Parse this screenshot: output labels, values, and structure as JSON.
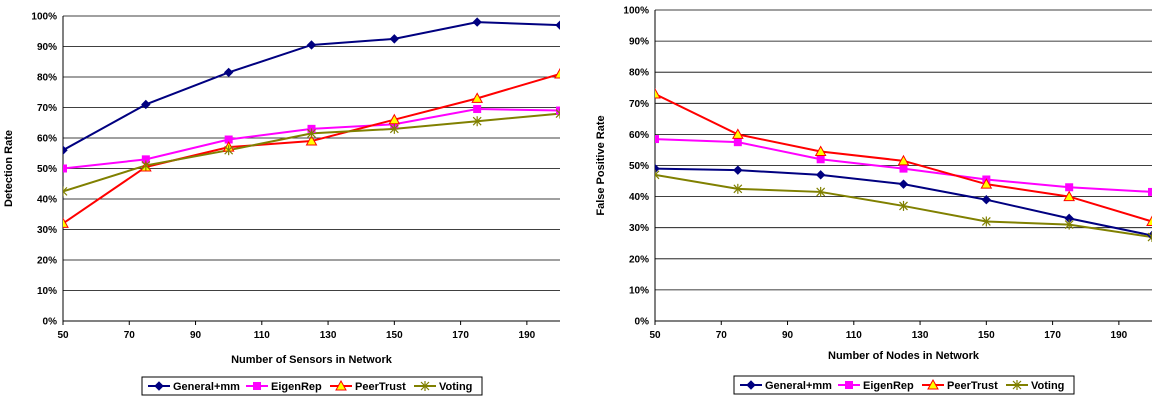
{
  "chart_data": [
    {
      "type": "line",
      "title": "",
      "xlabel": "Number of Sensors in Network",
      "ylabel": "Detection Rate",
      "xlim": [
        50,
        200
      ],
      "ylim": [
        0,
        100
      ],
      "x_ticks": [
        "50",
        "70",
        "90",
        "110",
        "130",
        "150",
        "170",
        "190"
      ],
      "y_ticks": [
        "0%",
        "10%",
        "20%",
        "30%",
        "40%",
        "50%",
        "60%",
        "70%",
        "80%",
        "90%",
        "100%"
      ],
      "grid": "horizontal",
      "legend_position": "bottom",
      "x": [
        50,
        75,
        100,
        125,
        150,
        175,
        200
      ],
      "series": [
        {
          "name": "General+mm",
          "color": "#000080",
          "marker": "diamond",
          "values": [
            56,
            71,
            81.5,
            90.5,
            92.5,
            98,
            97
          ]
        },
        {
          "name": "EigenRep",
          "color": "#FF00FF",
          "marker": "square",
          "values": [
            50,
            53,
            59.5,
            63,
            64.5,
            69.5,
            69
          ]
        },
        {
          "name": "PeerTrust",
          "color": "#FF0000",
          "marker": "triangle",
          "values": [
            32,
            50.5,
            57,
            59,
            66,
            73,
            81
          ]
        },
        {
          "name": "Voting",
          "color": "#808000",
          "marker": "star",
          "values": [
            42.5,
            51,
            56,
            61.5,
            63,
            65.5,
            68
          ]
        }
      ]
    },
    {
      "type": "line",
      "title": "",
      "xlabel": "Number of Nodes in Network",
      "ylabel": "False Positive Rate",
      "xlim": [
        50,
        200
      ],
      "ylim": [
        0,
        100
      ],
      "x_ticks": [
        "50",
        "70",
        "90",
        "110",
        "130",
        "150",
        "170",
        "190"
      ],
      "y_ticks": [
        "0%",
        "10%",
        "20%",
        "30%",
        "40%",
        "50%",
        "60%",
        "70%",
        "80%",
        "90%",
        "100%"
      ],
      "grid": "horizontal",
      "legend_position": "bottom",
      "x": [
        50,
        75,
        100,
        125,
        150,
        175,
        200
      ],
      "series": [
        {
          "name": "General+mm",
          "color": "#000080",
          "marker": "diamond",
          "values": [
            49,
            48.5,
            47,
            44,
            39,
            33,
            27.5
          ]
        },
        {
          "name": "EigenRep",
          "color": "#FF00FF",
          "marker": "square",
          "values": [
            58.5,
            57.5,
            52,
            49,
            45.5,
            43,
            41.5
          ]
        },
        {
          "name": "PeerTrust",
          "color": "#FF0000",
          "marker": "triangle",
          "values": [
            73,
            60,
            54.5,
            51.5,
            44,
            40,
            32
          ]
        },
        {
          "name": "Voting",
          "color": "#808000",
          "marker": "star",
          "values": [
            47,
            42.5,
            41.5,
            37,
            32,
            31,
            27
          ]
        }
      ]
    }
  ]
}
